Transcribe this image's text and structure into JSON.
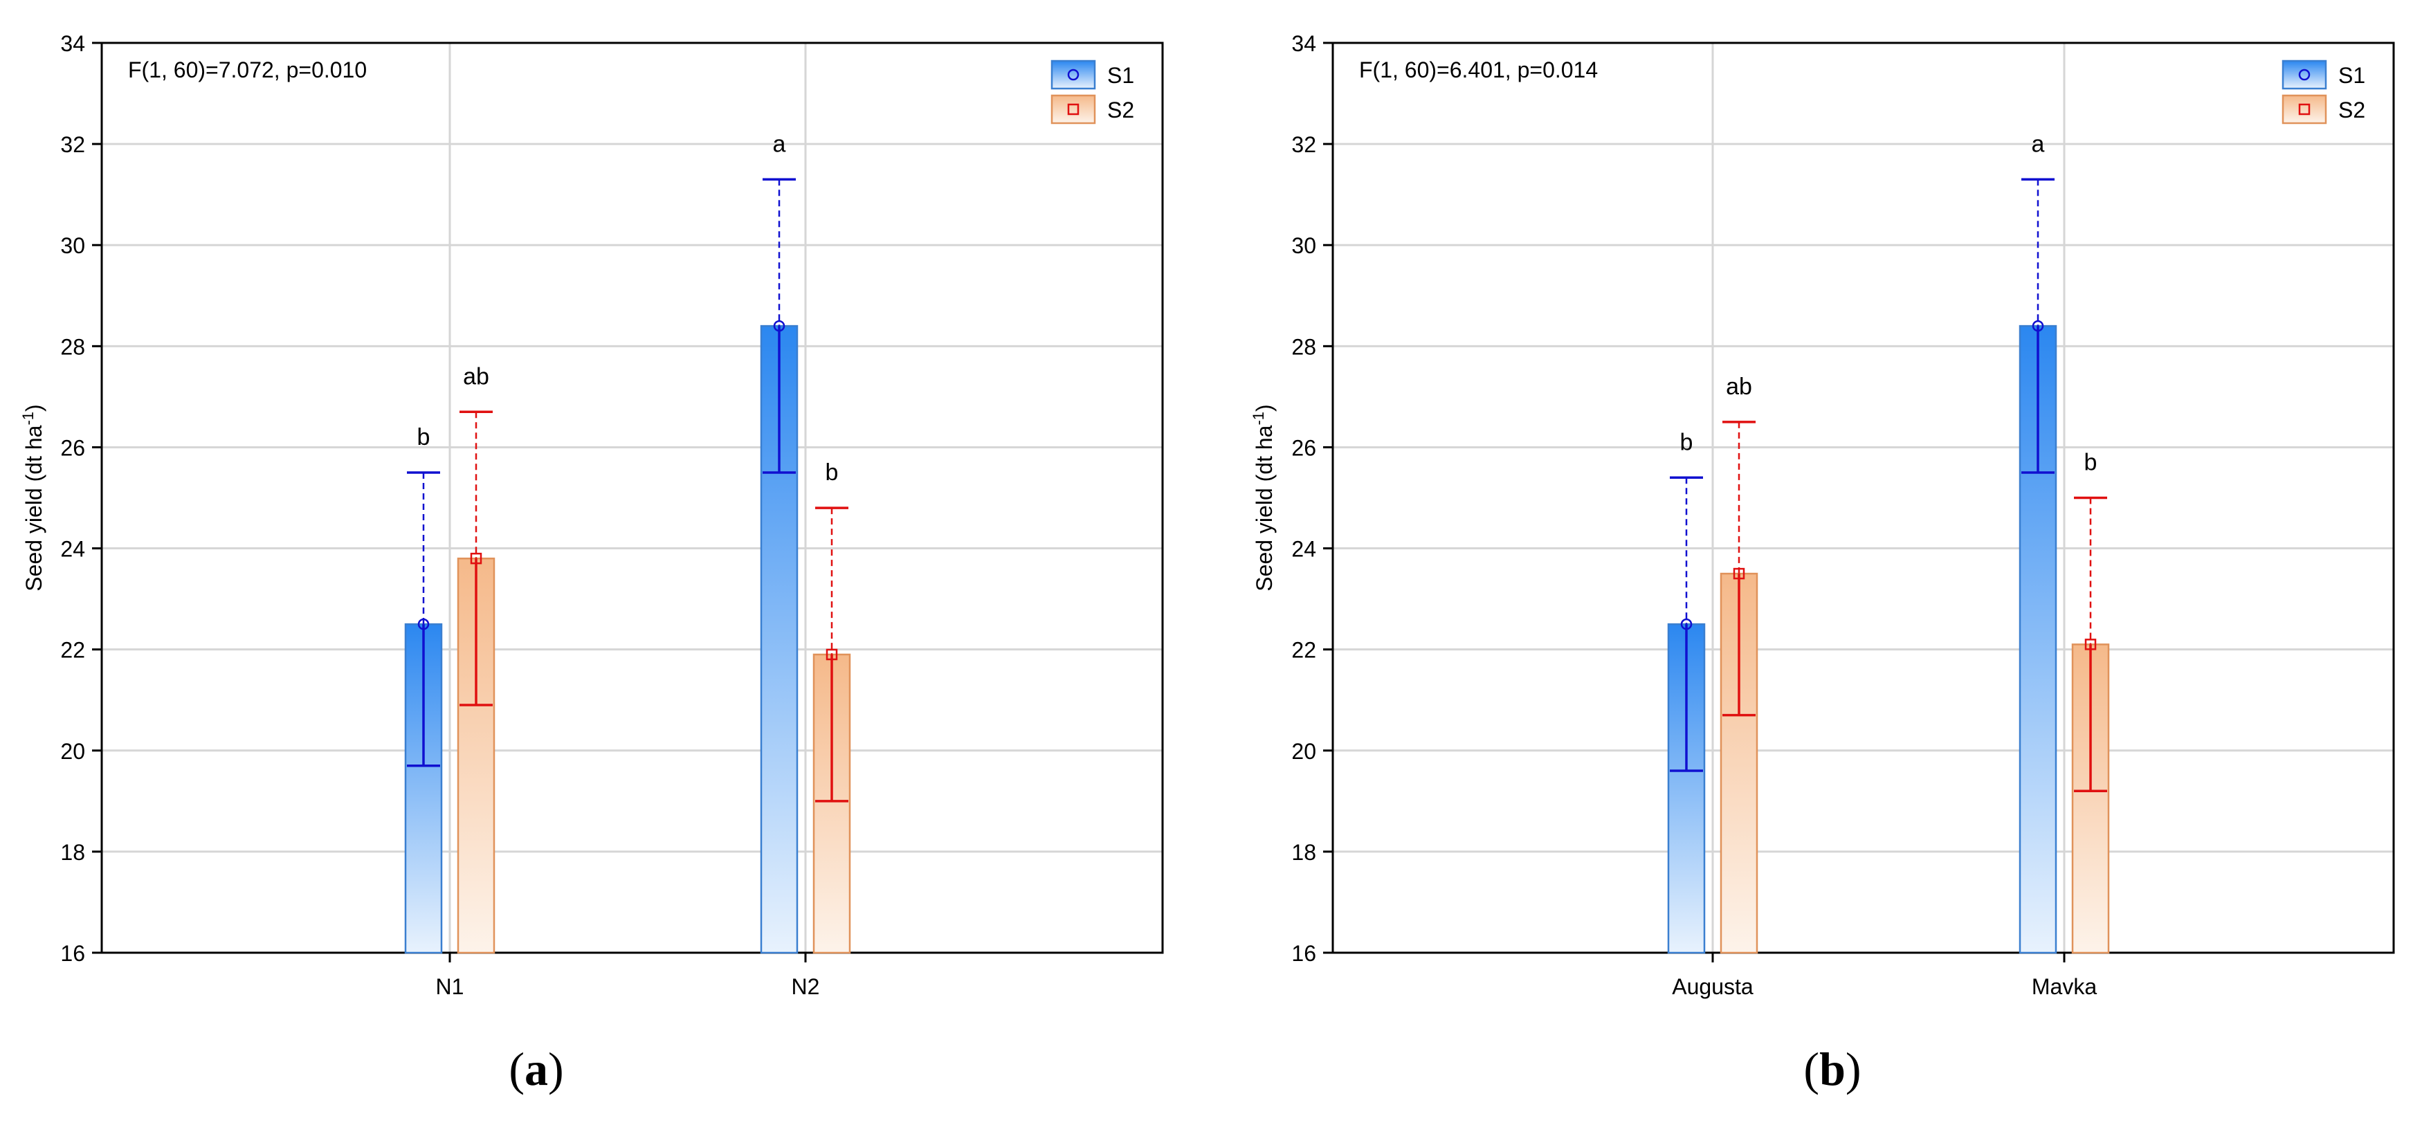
{
  "figure_labels": [
    "(a)",
    "(b)"
  ],
  "colors": {
    "s1_top": "#2b87f0",
    "s1_bottom": "#e8f2fd",
    "s1_edge": "#3a7fd0",
    "s1_err": "#1010d0",
    "s2_top": "#f5b98a",
    "s2_bottom": "#fdf3ea",
    "s2_edge": "#e0925a",
    "s2_err": "#e01010",
    "grid": "#d6d6d6",
    "axis": "#000000"
  },
  "chart_data": [
    {
      "type": "bar",
      "title": "",
      "annotation": "F(1, 60)=7.072, p=0.010",
      "xlabel": "",
      "ylabel": "Seed yield (dt ha",
      "ylabel_sup": "-1",
      "ylabel_close": ")",
      "ylim": [
        16,
        34
      ],
      "yticks": [
        16,
        18,
        20,
        22,
        24,
        26,
        28,
        30,
        32,
        34
      ],
      "categories": [
        "N1",
        "N2"
      ],
      "legend": [
        "S1",
        "S2"
      ],
      "legend_position": "top-right",
      "grid": true,
      "series": [
        {
          "name": "S1",
          "values": [
            22.5,
            28.4
          ],
          "err_low": [
            19.7,
            25.5
          ],
          "err_high": [
            25.5,
            31.3
          ],
          "letters": [
            "b",
            "a"
          ]
        },
        {
          "name": "S2",
          "values": [
            23.8,
            21.9
          ],
          "err_low": [
            20.9,
            19.0
          ],
          "err_high": [
            26.7,
            24.8
          ],
          "letters": [
            "ab",
            "b"
          ]
        }
      ]
    },
    {
      "type": "bar",
      "title": "",
      "annotation": "F(1, 60)=6.401, p=0.014",
      "xlabel": "",
      "ylabel": "Seed yield (dt ha",
      "ylabel_sup": "-1",
      "ylabel_close": ")",
      "ylim": [
        16,
        34
      ],
      "yticks": [
        16,
        18,
        20,
        22,
        24,
        26,
        28,
        30,
        32,
        34
      ],
      "categories": [
        "Augusta",
        "Mavka"
      ],
      "legend": [
        "S1",
        "S2"
      ],
      "legend_position": "top-right",
      "grid": true,
      "series": [
        {
          "name": "S1",
          "values": [
            22.5,
            28.4
          ],
          "err_low": [
            19.6,
            25.5
          ],
          "err_high": [
            25.4,
            31.3
          ],
          "letters": [
            "b",
            "a"
          ]
        },
        {
          "name": "S2",
          "values": [
            23.5,
            22.1
          ],
          "err_low": [
            20.7,
            19.2
          ],
          "err_high": [
            26.5,
            25.0
          ],
          "letters": [
            "ab",
            "b"
          ]
        }
      ]
    }
  ]
}
